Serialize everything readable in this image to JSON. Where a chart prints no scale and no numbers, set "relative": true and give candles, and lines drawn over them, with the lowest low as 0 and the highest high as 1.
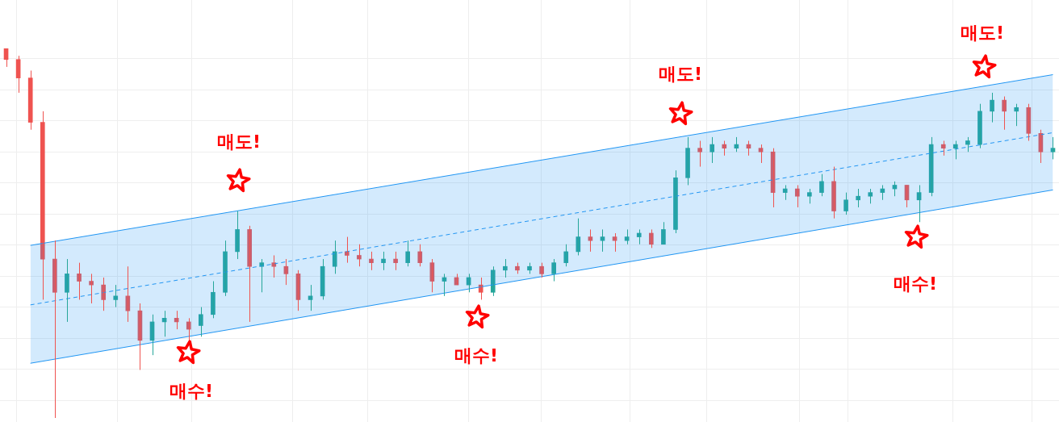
{
  "chart_data": {
    "type": "candlestick",
    "relative": true,
    "grid": true,
    "legend": false,
    "categories": [
      null,
      null,
      null,
      null,
      null,
      null,
      null,
      null,
      null,
      null,
      null,
      null,
      null,
      null,
      null,
      null,
      null,
      null,
      null,
      null,
      null,
      null,
      null,
      null,
      null,
      null,
      null,
      null,
      null,
      null,
      null,
      null,
      null,
      null,
      null,
      null,
      null,
      null,
      null,
      null,
      null,
      null,
      null,
      null,
      null,
      null,
      null,
      null,
      null,
      null,
      null,
      null,
      null,
      null,
      null,
      null,
      null,
      null,
      null,
      null,
      null,
      null,
      null,
      null,
      null,
      null,
      null,
      null,
      null,
      null,
      null,
      null,
      null,
      null,
      null,
      null,
      null,
      null,
      null,
      null,
      null,
      null,
      null,
      null,
      null,
      null,
      null
    ],
    "series": [
      {
        "ohlc": [
          [
            1.0,
            1.0,
            0.95,
            0.97
          ],
          [
            0.97,
            0.98,
            0.88,
            0.92
          ],
          [
            0.92,
            0.94,
            0.78,
            0.8
          ],
          [
            0.8,
            0.83,
            0.32,
            0.43
          ],
          [
            0.43,
            0.48,
            0,
            0.34
          ],
          [
            0.34,
            0.43,
            0.26,
            0.39
          ],
          [
            0.39,
            0.42,
            0.32,
            0.37
          ],
          [
            0.37,
            0.39,
            0.31,
            0.36
          ],
          [
            0.36,
            0.38,
            0.29,
            0.32
          ],
          [
            0.32,
            0.36,
            0.3,
            0.33
          ],
          [
            0.33,
            0.41,
            0.26,
            0.29
          ],
          [
            0.29,
            0.31,
            0.13,
            0.21
          ],
          [
            0.21,
            0.28,
            0.17,
            0.26
          ],
          [
            0.26,
            0.29,
            0.22,
            0.27
          ],
          [
            0.27,
            0.29,
            0.24,
            0.26
          ],
          [
            0.26,
            0.27,
            0.21,
            0.24
          ],
          [
            0.25,
            0.3,
            0.22,
            0.28
          ],
          [
            0.28,
            0.37,
            0.27,
            0.34
          ],
          [
            0.34,
            0.48,
            0.33,
            0.45
          ],
          [
            0.45,
            0.56,
            0.43,
            0.51
          ],
          [
            0.51,
            0.52,
            0.26,
            0.41
          ],
          [
            0.41,
            0.43,
            0.34,
            0.42
          ],
          [
            0.42,
            0.44,
            0.38,
            0.41
          ],
          [
            0.41,
            0.43,
            0.36,
            0.39
          ],
          [
            0.39,
            0.4,
            0.29,
            0.32
          ],
          [
            0.32,
            0.36,
            0.29,
            0.33
          ],
          [
            0.33,
            0.43,
            0.32,
            0.41
          ],
          [
            0.41,
            0.48,
            0.39,
            0.45
          ],
          [
            0.45,
            0.49,
            0.42,
            0.44
          ],
          [
            0.44,
            0.47,
            0.41,
            0.43
          ],
          [
            0.43,
            0.45,
            0.4,
            0.42
          ],
          [
            0.42,
            0.45,
            0.4,
            0.43
          ],
          [
            0.43,
            0.45,
            0.4,
            0.42
          ],
          [
            0.42,
            0.48,
            0.41,
            0.45
          ],
          [
            0.45,
            0.47,
            0.41,
            0.42
          ],
          [
            0.42,
            0.43,
            0.34,
            0.37
          ],
          [
            0.37,
            0.39,
            0.33,
            0.38
          ],
          [
            0.38,
            0.39,
            0.36,
            0.36
          ],
          [
            0.36,
            0.39,
            0.34,
            0.38
          ],
          [
            0.36,
            0.38,
            0.32,
            0.34
          ],
          [
            0.34,
            0.41,
            0.33,
            0.4
          ],
          [
            0.4,
            0.43,
            0.38,
            0.41
          ],
          [
            0.41,
            0.42,
            0.39,
            0.4
          ],
          [
            0.4,
            0.42,
            0.39,
            0.41
          ],
          [
            0.41,
            0.42,
            0.38,
            0.39
          ],
          [
            0.39,
            0.43,
            0.37,
            0.42
          ],
          [
            0.42,
            0.47,
            0.41,
            0.45
          ],
          [
            0.45,
            0.54,
            0.44,
            0.49
          ],
          [
            0.49,
            0.51,
            0.45,
            0.48
          ],
          [
            0.48,
            0.51,
            0.45,
            0.49
          ],
          [
            0.49,
            0.5,
            0.45,
            0.48
          ],
          [
            0.48,
            0.51,
            0.47,
            0.49
          ],
          [
            0.49,
            0.51,
            0.47,
            0.5
          ],
          [
            0.5,
            0.51,
            0.46,
            0.47
          ],
          [
            0.47,
            0.53,
            0.47,
            0.51
          ],
          [
            0.51,
            0.67,
            0.5,
            0.65
          ],
          [
            0.65,
            0.76,
            0.63,
            0.73
          ],
          [
            0.73,
            0.75,
            0.68,
            0.72
          ],
          [
            0.72,
            0.76,
            0.69,
            0.74
          ],
          [
            0.74,
            0.75,
            0.71,
            0.73
          ],
          [
            0.73,
            0.76,
            0.72,
            0.74
          ],
          [
            0.74,
            0.75,
            0.71,
            0.73
          ],
          [
            0.73,
            0.74,
            0.69,
            0.72
          ],
          [
            0.72,
            0.73,
            0.57,
            0.61
          ],
          [
            0.61,
            0.63,
            0.59,
            0.62
          ],
          [
            0.62,
            0.63,
            0.57,
            0.6
          ],
          [
            0.6,
            0.62,
            0.58,
            0.61
          ],
          [
            0.61,
            0.66,
            0.6,
            0.64
          ],
          [
            0.64,
            0.68,
            0.54,
            0.56
          ],
          [
            0.56,
            0.61,
            0.55,
            0.59
          ],
          [
            0.59,
            0.62,
            0.57,
            0.6
          ],
          [
            0.6,
            0.62,
            0.58,
            0.61
          ],
          [
            0.61,
            0.63,
            0.59,
            0.62
          ],
          [
            0.62,
            0.64,
            0.6,
            0.63
          ],
          [
            0.63,
            0.63,
            0.57,
            0.59
          ],
          [
            0.59,
            0.63,
            0.53,
            0.61
          ],
          [
            0.61,
            0.76,
            0.6,
            0.74
          ],
          [
            0.74,
            0.75,
            0.71,
            0.73
          ],
          [
            0.73,
            0.75,
            0.7,
            0.74
          ],
          [
            0.74,
            0.76,
            0.72,
            0.75
          ],
          [
            0.74,
            0.85,
            0.73,
            0.83
          ],
          [
            0.83,
            0.88,
            0.8,
            0.86
          ],
          [
            0.86,
            0.87,
            0.78,
            0.83
          ],
          [
            0.83,
            0.85,
            0.79,
            0.84
          ],
          [
            0.84,
            0.85,
            0.75,
            0.77
          ],
          [
            0.77,
            0.78,
            0.69,
            0.72
          ],
          [
            0.72,
            0.76,
            0.7,
            0.73
          ]
        ],
        "colors": [
          "#ef5350",
          "#ef5350",
          "#ef5350",
          "#ef5350",
          "#ef5350",
          "#26a69a",
          "#ef5350",
          "#ef5350",
          "#ef5350",
          "#26a69a",
          "#ef5350",
          "#ef5350",
          "#26a69a",
          "#26a69a",
          "#ef5350",
          "#ef5350",
          "#26a69a",
          "#26a69a",
          "#26a69a",
          "#26a69a",
          "#ef5350",
          "#26a69a",
          "#ef5350",
          "#ef5350",
          "#ef5350",
          "#26a69a",
          "#26a69a",
          "#26a69a",
          "#ef5350",
          "#ef5350",
          "#ef5350",
          "#26a69a",
          "#ef5350",
          "#26a69a",
          "#ef5350",
          "#ef5350",
          "#26a69a",
          "#ef5350",
          "#26a69a",
          "#ef5350",
          "#26a69a",
          "#26a69a",
          "#ef5350",
          "#26a69a",
          "#ef5350",
          "#26a69a",
          "#26a69a",
          "#26a69a",
          "#ef5350",
          "#26a69a",
          "#ef5350",
          "#26a69a",
          "#26a69a",
          "#ef5350",
          "#26a69a",
          "#26a69a",
          "#26a69a",
          "#ef5350",
          "#26a69a",
          "#ef5350",
          "#26a69a",
          "#ef5350",
          "#ef5350",
          "#ef5350",
          "#26a69a",
          "#ef5350",
          "#26a69a",
          "#26a69a",
          "#ef5350",
          "#26a69a",
          "#26a69a",
          "#26a69a",
          "#26a69a",
          "#26a69a",
          "#ef5350",
          "#26a69a",
          "#26a69a",
          "#ef5350",
          "#26a69a",
          "#26a69a",
          "#26a69a",
          "#26a69a",
          "#ef5350",
          "#26a69a",
          "#ef5350",
          "#ef5350",
          "#26a69a"
        ]
      },
      {
        "type": "line",
        "color": "#2196f3",
        "line_style": "solid",
        "values": [
          null,
          null,
          0.467,
          null,
          null,
          null,
          null,
          null,
          null,
          null,
          null,
          null,
          null,
          null,
          null,
          null,
          null,
          null,
          null,
          null,
          null,
          null,
          null,
          null,
          null,
          null,
          null,
          null,
          null,
          null,
          null,
          null,
          null,
          null,
          null,
          null,
          null,
          null,
          null,
          null,
          null,
          null,
          null,
          null,
          null,
          null,
          null,
          null,
          null,
          null,
          null,
          null,
          null,
          null,
          null,
          null,
          null,
          null,
          null,
          null,
          null,
          null,
          null,
          null,
          null,
          null,
          null,
          null,
          null,
          null,
          null,
          null,
          null,
          null,
          null,
          null,
          null,
          null,
          null,
          null,
          null,
          null,
          null,
          null,
          null,
          null,
          0.929
        ]
      },
      {
        "type": "line",
        "color": "#2196f3",
        "line_style": "solid",
        "values": [
          null,
          null,
          0.148,
          null,
          null,
          null,
          null,
          null,
          null,
          null,
          null,
          null,
          null,
          null,
          null,
          null,
          null,
          null,
          null,
          null,
          null,
          null,
          null,
          null,
          null,
          null,
          null,
          null,
          null,
          null,
          null,
          null,
          null,
          null,
          null,
          null,
          null,
          null,
          null,
          null,
          null,
          null,
          null,
          null,
          null,
          null,
          null,
          null,
          null,
          null,
          null,
          null,
          null,
          null,
          null,
          null,
          null,
          null,
          null,
          null,
          null,
          null,
          null,
          null,
          null,
          null,
          null,
          null,
          null,
          null,
          null,
          null,
          null,
          null,
          null,
          null,
          null,
          null,
          null,
          null,
          null,
          null,
          null,
          null,
          null,
          null,
          0.617
        ]
      },
      {
        "type": "line",
        "color": "#2196f3",
        "line_style": "dashed",
        "values": [
          null,
          null,
          0.306,
          null,
          null,
          null,
          null,
          null,
          null,
          null,
          null,
          null,
          null,
          null,
          null,
          null,
          null,
          null,
          null,
          null,
          null,
          null,
          null,
          null,
          null,
          null,
          null,
          null,
          null,
          null,
          null,
          null,
          null,
          null,
          null,
          null,
          null,
          null,
          null,
          null,
          null,
          null,
          null,
          null,
          null,
          null,
          null,
          null,
          null,
          null,
          null,
          null,
          null,
          null,
          null,
          null,
          null,
          null,
          null,
          null,
          null,
          null,
          null,
          null,
          null,
          null,
          null,
          null,
          null,
          null,
          null,
          null,
          null,
          null,
          null,
          null,
          null,
          null,
          null,
          null,
          null,
          null,
          null,
          null,
          null,
          null,
          0.772
        ],
        "lower": [
          null,
          null,
          0.148,
          null,
          null,
          null,
          null,
          null,
          null,
          null,
          null,
          null,
          null,
          null,
          null,
          null,
          null,
          null,
          null,
          null,
          null,
          null,
          null,
          null,
          null,
          null,
          null,
          null,
          null,
          null,
          null,
          null,
          null,
          null,
          null,
          null,
          null,
          null,
          null,
          null,
          null,
          null,
          null,
          null,
          null,
          null,
          null,
          null,
          null,
          null,
          null,
          null,
          null,
          null,
          null,
          null,
          null,
          null,
          null,
          null,
          null,
          null,
          null,
          null,
          null,
          null,
          null,
          null,
          null,
          null,
          null,
          null,
          null,
          null,
          null,
          null,
          null,
          null,
          null,
          null,
          null,
          null,
          null,
          null,
          null,
          null,
          0.617
        ],
        "upper": [
          null,
          null,
          0.467,
          null,
          null,
          null,
          null,
          null,
          null,
          null,
          null,
          null,
          null,
          null,
          null,
          null,
          null,
          null,
          null,
          null,
          null,
          null,
          null,
          null,
          null,
          null,
          null,
          null,
          null,
          null,
          null,
          null,
          null,
          null,
          null,
          null,
          null,
          null,
          null,
          null,
          null,
          null,
          null,
          null,
          null,
          null,
          null,
          null,
          null,
          null,
          null,
          null,
          null,
          null,
          null,
          null,
          null,
          null,
          null,
          null,
          null,
          null,
          null,
          null,
          null,
          null,
          null,
          null,
          null,
          null,
          null,
          null,
          null,
          null,
          null,
          null,
          null,
          null,
          null,
          null,
          null,
          null,
          null,
          null,
          null,
          null,
          0.929
        ]
      }
    ],
    "annotations": [
      "매수!",
      "매도!",
      "매수!",
      "매도!",
      "매수!",
      "매도!"
    ]
  }
}
